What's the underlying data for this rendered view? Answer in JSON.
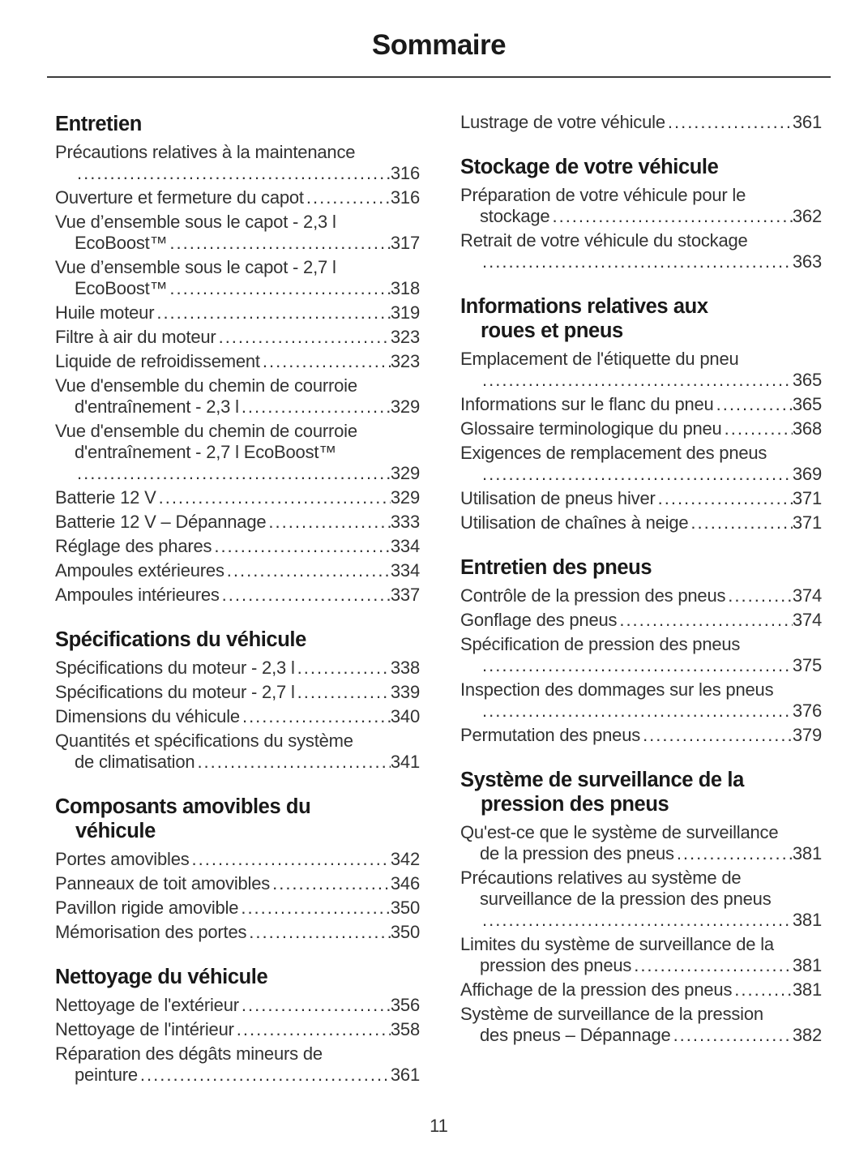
{
  "title": "Sommaire",
  "page_number": "11",
  "columns": {
    "left": [
      {
        "heading": [
          "Entretien"
        ],
        "items": [
          {
            "lines": [
              "Précautions relatives à la maintenance",
              ""
            ],
            "page": "316"
          },
          {
            "lines": [
              "Ouverture et fermeture du capot"
            ],
            "page": "316"
          },
          {
            "lines": [
              "Vue d’ensemble sous le capot - 2,3 l",
              "EcoBoost™ "
            ],
            "page": "317"
          },
          {
            "lines": [
              "Vue d’ensemble sous le capot - 2,7 l",
              "EcoBoost™"
            ],
            "page": "318"
          },
          {
            "lines": [
              "Huile moteur"
            ],
            "page": "319"
          },
          {
            "lines": [
              "Filtre à air du moteur"
            ],
            "page": "323"
          },
          {
            "lines": [
              "Liquide de refroidissement"
            ],
            "page": "323"
          },
          {
            "lines": [
              "Vue d'ensemble du chemin de courroie",
              "d'entraînement - 2,3 l"
            ],
            "page": "329"
          },
          {
            "lines": [
              "Vue d'ensemble du chemin de courroie",
              "d'entraînement - 2,7 l EcoBoost™",
              ""
            ],
            "page": "329"
          },
          {
            "lines": [
              "Batterie 12 V"
            ],
            "page": "329"
          },
          {
            "lines": [
              "Batterie 12 V – Dépannage"
            ],
            "page": "333"
          },
          {
            "lines": [
              "Réglage des phares"
            ],
            "page": "334"
          },
          {
            "lines": [
              "Ampoules extérieures"
            ],
            "page": "334"
          },
          {
            "lines": [
              "Ampoules intérieures"
            ],
            "page": "337"
          }
        ]
      },
      {
        "heading": [
          "Spécifications du véhicule"
        ],
        "items": [
          {
            "lines": [
              "Spécifications du moteur - 2,3 l"
            ],
            "page": "338"
          },
          {
            "lines": [
              "Spécifications du moteur - 2,7 l"
            ],
            "page": "339"
          },
          {
            "lines": [
              "Dimensions du véhicule"
            ],
            "page": "340"
          },
          {
            "lines": [
              "Quantités et spécifications du système",
              "de climatisation"
            ],
            "page": "341"
          }
        ]
      },
      {
        "heading": [
          "Composants amovibles du",
          "véhicule"
        ],
        "items": [
          {
            "lines": [
              "Portes amovibles"
            ],
            "page": "342"
          },
          {
            "lines": [
              "Panneaux de toit amovibles"
            ],
            "page": "346"
          },
          {
            "lines": [
              "Pavillon rigide amovible"
            ],
            "page": "350"
          },
          {
            "lines": [
              "Mémorisation des portes"
            ],
            "page": "350"
          }
        ]
      },
      {
        "heading": [
          "Nettoyage du véhicule"
        ],
        "items": [
          {
            "lines": [
              "Nettoyage de l'extérieur"
            ],
            "page": "356"
          },
          {
            "lines": [
              "Nettoyage de l'intérieur"
            ],
            "page": "358"
          },
          {
            "lines": [
              "Réparation des dégâts mineurs de",
              "peinture"
            ],
            "page": "361"
          }
        ]
      }
    ],
    "right": [
      {
        "heading": null,
        "items": [
          {
            "lines": [
              "Lustrage de votre véhicule"
            ],
            "page": "361"
          }
        ]
      },
      {
        "heading": [
          "Stockage de votre véhicule"
        ],
        "items": [
          {
            "lines": [
              "Préparation de votre véhicule pour le",
              "stockage "
            ],
            "page": "362"
          },
          {
            "lines": [
              "Retrait de votre véhicule du stockage",
              ""
            ],
            "page": "363"
          }
        ]
      },
      {
        "heading": [
          "Informations relatives aux",
          "roues et pneus"
        ],
        "items": [
          {
            "lines": [
              "Emplacement de l'étiquette du pneu",
              ""
            ],
            "page": "365"
          },
          {
            "lines": [
              "Informations sur le flanc du pneu"
            ],
            "page": "365"
          },
          {
            "lines": [
              "Glossaire terminologique du pneu"
            ],
            "page": "368"
          },
          {
            "lines": [
              "Exigences de remplacement des pneus",
              ""
            ],
            "page": "369"
          },
          {
            "lines": [
              "Utilisation de pneus hiver"
            ],
            "page": "371"
          },
          {
            "lines": [
              "Utilisation de chaînes à neige"
            ],
            "page": "371"
          }
        ]
      },
      {
        "heading": [
          "Entretien des pneus"
        ],
        "items": [
          {
            "lines": [
              "Contrôle de la pression des pneus"
            ],
            "page": "374"
          },
          {
            "lines": [
              "Gonflage des pneus"
            ],
            "page": "374"
          },
          {
            "lines": [
              "Spécification de pression des pneus",
              ""
            ],
            "page": "375"
          },
          {
            "lines": [
              "Inspection des dommages sur les pneus",
              ""
            ],
            "page": "376"
          },
          {
            "lines": [
              "Permutation des pneus"
            ],
            "page": "379"
          }
        ]
      },
      {
        "heading": [
          "Système de surveillance de la",
          "pression des pneus"
        ],
        "items": [
          {
            "lines": [
              "Qu'est-ce que le système de surveillance",
              "de la pression des pneus"
            ],
            "page": "381"
          },
          {
            "lines": [
              "Précautions relatives au système de",
              "surveillance de la pression des pneus",
              ""
            ],
            "page": "381"
          },
          {
            "lines": [
              "Limites du système de surveillance de la",
              "pression des pneus"
            ],
            "page": "381"
          },
          {
            "lines": [
              "Affichage de la pression des pneus"
            ],
            "page": "381"
          },
          {
            "lines": [
              "Système de surveillance de la pression",
              "des pneus – Dépannage"
            ],
            "page": "382"
          }
        ]
      }
    ]
  }
}
